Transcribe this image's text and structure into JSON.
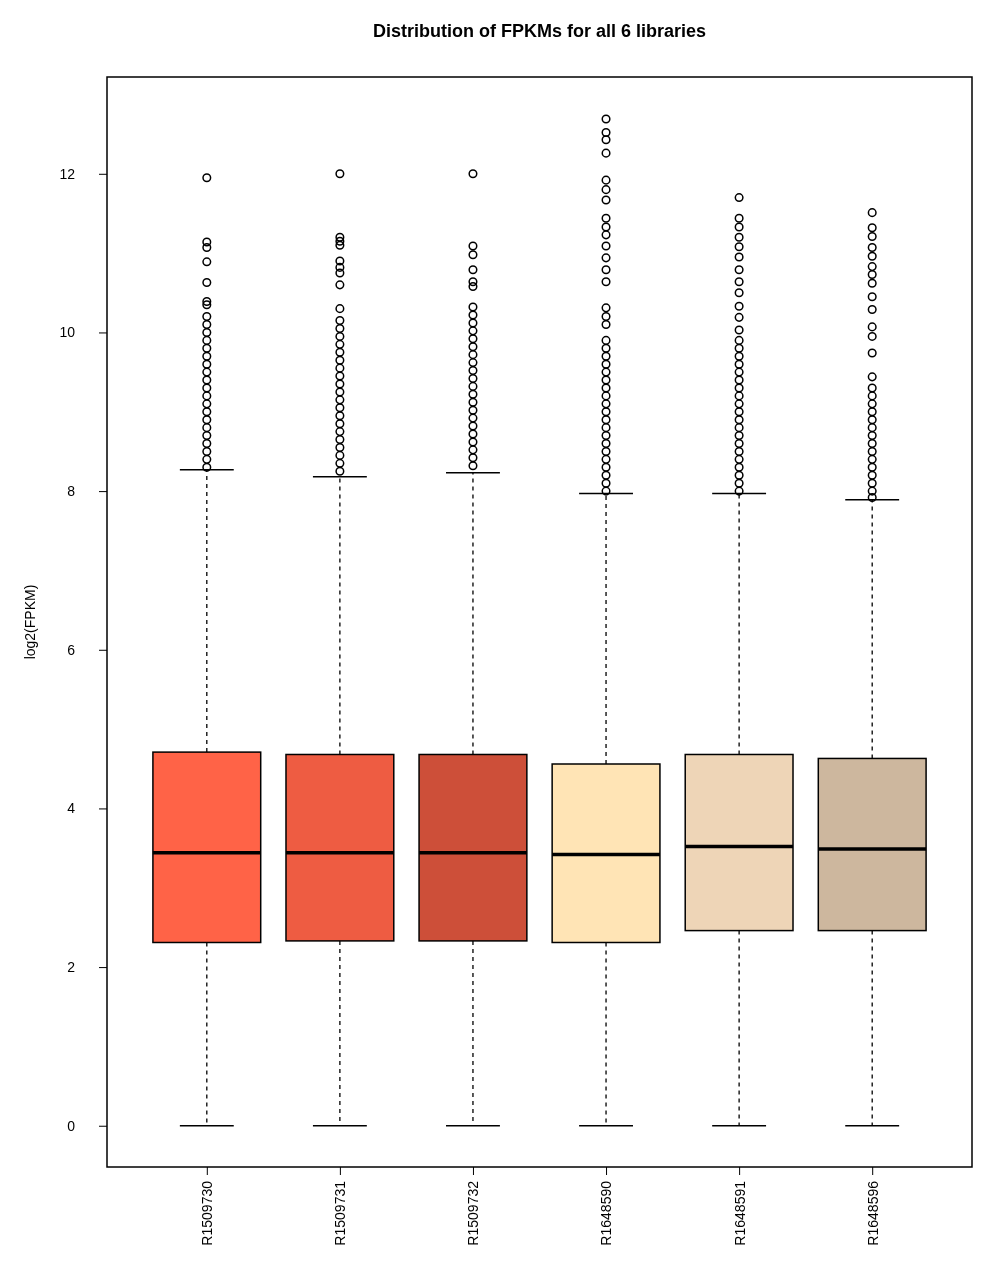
{
  "chart_data": {
    "type": "box",
    "title": "Distribution of FPKMs for all 6 libraries",
    "ylabel": "log2(FPKM)",
    "categories": [
      "R1509730",
      "R1509731",
      "R1509732",
      "R1648590",
      "R1648591",
      "R1648596"
    ],
    "colors": [
      "#ff6347",
      "#ee5c42",
      "#cd4f39",
      "#ffe4b5",
      "#eed5b7",
      "#cdb79e"
    ],
    "marker": "circle",
    "boxes": [
      {
        "low": 0,
        "q1": 2.31,
        "median": 3.44,
        "q3": 4.71,
        "high": 8.27,
        "outliers": [
          11.95,
          11.14,
          11.07,
          10.89,
          10.63,
          10.39,
          10.35,
          10.2,
          10.1,
          10.0,
          9.9,
          9.8,
          9.7,
          9.6,
          9.5,
          9.4,
          9.3,
          9.2,
          9.1,
          9.0,
          8.9,
          8.8,
          8.7,
          8.6,
          8.5,
          8.4,
          8.3
        ]
      },
      {
        "low": 0,
        "q1": 2.33,
        "median": 3.44,
        "q3": 4.68,
        "high": 8.18,
        "outliers": [
          12.0,
          11.2,
          11.15,
          11.1,
          10.9,
          10.82,
          10.75,
          10.6,
          10.3,
          10.15,
          10.05,
          9.95,
          9.85,
          9.75,
          9.65,
          9.55,
          9.45,
          9.35,
          9.25,
          9.15,
          9.05,
          8.95,
          8.85,
          8.75,
          8.65,
          8.55,
          8.45,
          8.35,
          8.25
        ]
      },
      {
        "low": 0,
        "q1": 2.33,
        "median": 3.44,
        "q3": 4.68,
        "high": 8.23,
        "outliers": [
          12.0,
          11.09,
          10.98,
          10.79,
          10.64,
          10.58,
          10.32,
          10.22,
          10.12,
          10.02,
          9.92,
          9.82,
          9.72,
          9.62,
          9.52,
          9.42,
          9.32,
          9.22,
          9.12,
          9.02,
          8.92,
          8.82,
          8.72,
          8.62,
          8.52,
          8.42,
          8.32
        ]
      },
      {
        "low": 0,
        "q1": 2.31,
        "median": 3.42,
        "q3": 4.56,
        "high": 7.97,
        "outliers": [
          12.69,
          12.52,
          12.43,
          12.26,
          11.92,
          11.8,
          11.67,
          11.44,
          11.33,
          11.23,
          11.09,
          10.94,
          10.79,
          10.64,
          10.31,
          10.2,
          10.1,
          9.9,
          9.8,
          9.7,
          9.6,
          9.5,
          9.4,
          9.3,
          9.2,
          9.1,
          9.0,
          8.9,
          8.8,
          8.7,
          8.6,
          8.5,
          8.4,
          8.3,
          8.2,
          8.1,
          8.0
        ]
      },
      {
        "low": 0,
        "q1": 2.46,
        "median": 3.52,
        "q3": 4.68,
        "high": 7.97,
        "outliers": [
          11.7,
          11.44,
          11.33,
          11.2,
          11.08,
          10.95,
          10.79,
          10.64,
          10.5,
          10.33,
          10.19,
          10.03,
          9.9,
          9.8,
          9.7,
          9.6,
          9.5,
          9.4,
          9.3,
          9.2,
          9.1,
          9.0,
          8.9,
          8.8,
          8.7,
          8.6,
          8.5,
          8.4,
          8.3,
          8.2,
          8.1,
          8.0
        ]
      },
      {
        "low": 0,
        "q1": 2.46,
        "median": 3.49,
        "q3": 4.63,
        "high": 7.89,
        "outliers": [
          11.51,
          11.32,
          11.21,
          11.07,
          10.96,
          10.83,
          10.73,
          10.62,
          10.45,
          10.29,
          10.07,
          9.95,
          9.74,
          9.44,
          9.3,
          9.2,
          9.1,
          9.0,
          8.9,
          8.8,
          8.7,
          8.6,
          8.5,
          8.4,
          8.3,
          8.2,
          8.1,
          8.0,
          7.92
        ]
      }
    ],
    "ylim": [
      -0.52,
      13.22
    ],
    "yticks": [
      0,
      2,
      4,
      6,
      8,
      10,
      12
    ]
  }
}
